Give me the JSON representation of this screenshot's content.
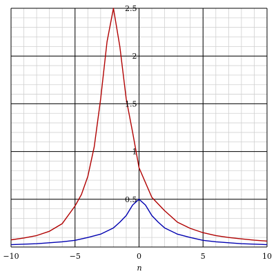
{
  "chart_data": {
    "type": "line",
    "title": "",
    "xlabel": "n",
    "ylabel": "",
    "xlim": [
      -10,
      10
    ],
    "ylim": [
      0,
      2.5
    ],
    "x_ticks": [
      -10,
      -5,
      0,
      5,
      10
    ],
    "x_tick_labels": [
      "−10",
      "−5",
      "0",
      "5",
      "10"
    ],
    "y_ticks": [
      0.5,
      1,
      1.5,
      2,
      2.5
    ],
    "y_tick_labels": [
      "0.5",
      "1",
      "1.5",
      "2",
      "2.5"
    ],
    "grid": true,
    "legend": "none",
    "series": [
      {
        "color": "#b00000",
        "x": [
          -10,
          -9,
          -8,
          -7,
          -6,
          -5,
          -4.5,
          -4,
          -3.5,
          -3,
          -2.5,
          -2,
          -1.5,
          -1,
          -0.5,
          0,
          1,
          2,
          3,
          4,
          5,
          6,
          7,
          8,
          9,
          10
        ],
        "y": [
          0.075,
          0.094,
          0.12,
          0.165,
          0.245,
          0.43,
          0.55,
          0.74,
          1.05,
          1.55,
          2.15,
          2.5,
          2.1,
          1.55,
          1.2,
          0.83,
          0.52,
          0.38,
          0.26,
          0.195,
          0.15,
          0.12,
          0.1,
          0.085,
          0.072,
          0.062
        ]
      },
      {
        "color": "#0000b0",
        "x": [
          -10,
          -8,
          -6,
          -5,
          -4,
          -3,
          -2,
          -1.5,
          -1,
          -0.5,
          0,
          0.5,
          1,
          1.5,
          2,
          3,
          4,
          5,
          6,
          8,
          10
        ],
        "y": [
          0.025,
          0.035,
          0.055,
          0.07,
          0.1,
          0.135,
          0.2,
          0.26,
          0.33,
          0.44,
          0.5,
          0.44,
          0.33,
          0.26,
          0.2,
          0.135,
          0.1,
          0.07,
          0.055,
          0.035,
          0.025
        ]
      }
    ]
  }
}
